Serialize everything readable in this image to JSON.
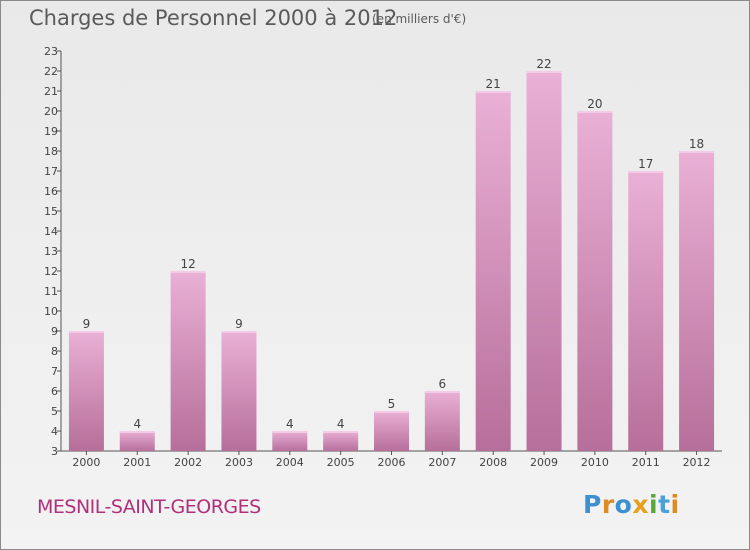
{
  "header": {
    "title": "Charges de Personnel 2000 à 2012",
    "subtitle": "(en milliers d'€)"
  },
  "footer": {
    "commune": "MESNIL-SAINT-GEORGES",
    "logo": {
      "text": "Proxiti",
      "colors": [
        "#3c8fd0",
        "#e08a26",
        "#3c8fd0",
        "#e3a21a",
        "#58a83a",
        "#4aa0d8",
        "#e08a26"
      ]
    }
  },
  "colors": {
    "bar_light": "#eab0d6",
    "bar_dark": "#b66f9a",
    "axis": "#555555",
    "grid": "#c8c8c8"
  },
  "chart_data": {
    "type": "bar",
    "categories": [
      "2000",
      "2001",
      "2002",
      "2003",
      "2004",
      "2005",
      "2006",
      "2007",
      "2008",
      "2009",
      "2010",
      "2011",
      "2012"
    ],
    "values": [
      9,
      4,
      12,
      9,
      4,
      4,
      5,
      6,
      21,
      22,
      20,
      17,
      18
    ],
    "title": "Charges de Personnel 2000 à 2012",
    "subtitle": "(en milliers d'€)",
    "ylim": [
      3,
      23
    ],
    "yticks": [
      3,
      4,
      5,
      6,
      7,
      8,
      9,
      10,
      11,
      12,
      13,
      14,
      15,
      16,
      17,
      18,
      19,
      20,
      21,
      22,
      23
    ],
    "grid": false,
    "legend": "none"
  }
}
